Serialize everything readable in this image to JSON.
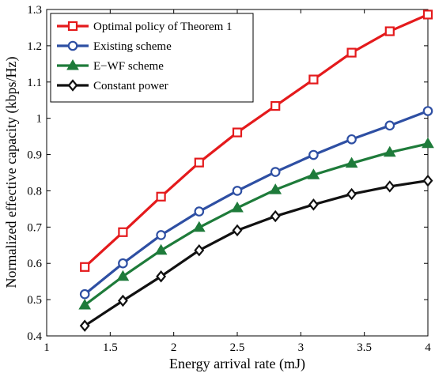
{
  "chart_data": {
    "type": "line",
    "xlabel": "Energy arrival rate (mJ)",
    "ylabel": "Normalized effective capacity (kbps/Hz)",
    "xlim": [
      1,
      4
    ],
    "ylim": [
      0.4,
      1.3
    ],
    "xticks": [
      "1",
      "1.5",
      "2",
      "2.5",
      "3",
      "3.5",
      "4"
    ],
    "yticks": [
      "0.4",
      "0.5",
      "0.6",
      "0.7",
      "0.8",
      "0.9",
      "1",
      "1.1",
      "1.2",
      "1.3"
    ],
    "grid": false,
    "legend_position": "top-left",
    "x": [
      1.3,
      1.6,
      1.9,
      2.2,
      2.5,
      2.8,
      3.1,
      3.4,
      3.7,
      4.0
    ],
    "series": [
      {
        "name": "Optimal policy of Theorem 1",
        "color": "#e41a1c",
        "marker": "square",
        "values": [
          0.59,
          0.686,
          0.784,
          0.878,
          0.961,
          1.034,
          1.107,
          1.181,
          1.24,
          1.286
        ]
      },
      {
        "name": "Existing scheme",
        "color": "#2e4fa3",
        "marker": "circle",
        "values": [
          0.515,
          0.6,
          0.678,
          0.743,
          0.8,
          0.852,
          0.899,
          0.942,
          0.98,
          1.02
        ]
      },
      {
        "name": "E−WF scheme",
        "color": "#1e7b3a",
        "marker": "triangle",
        "values": [
          0.485,
          0.564,
          0.636,
          0.699,
          0.753,
          0.803,
          0.844,
          0.876,
          0.906,
          0.93
        ]
      },
      {
        "name": "Constant power",
        "color": "#111111",
        "marker": "diamond",
        "values": [
          0.428,
          0.497,
          0.564,
          0.636,
          0.691,
          0.73,
          0.762,
          0.791,
          0.812,
          0.828
        ]
      }
    ]
  }
}
